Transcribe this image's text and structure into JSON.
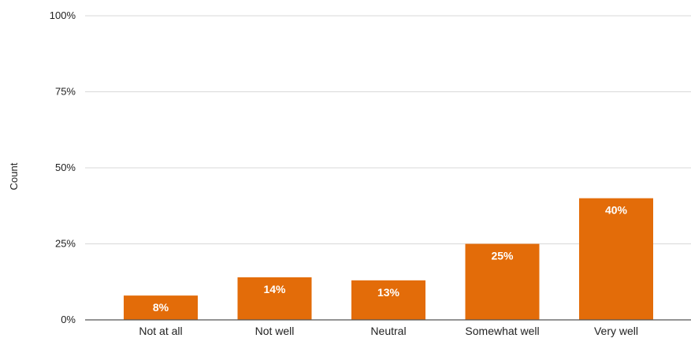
{
  "chart_data": {
    "type": "bar",
    "title": "",
    "xlabel": "",
    "ylabel": "Count",
    "categories": [
      "Not at all",
      "Not well",
      "Neutral",
      "Somewhat well",
      "Very well"
    ],
    "values": [
      8,
      14,
      13,
      25,
      40
    ],
    "data_labels": [
      "8%",
      "14%",
      "13%",
      "25%",
      "40%"
    ],
    "ylim": [
      0,
      100
    ],
    "yticks": [
      0,
      25,
      50,
      75,
      100
    ],
    "ytick_labels": [
      "0%",
      "25%",
      "50%",
      "75%",
      "100%"
    ],
    "grid": true,
    "legend": "none",
    "bar_color": "#e36c09",
    "grid_color": "#d9d9d9"
  }
}
